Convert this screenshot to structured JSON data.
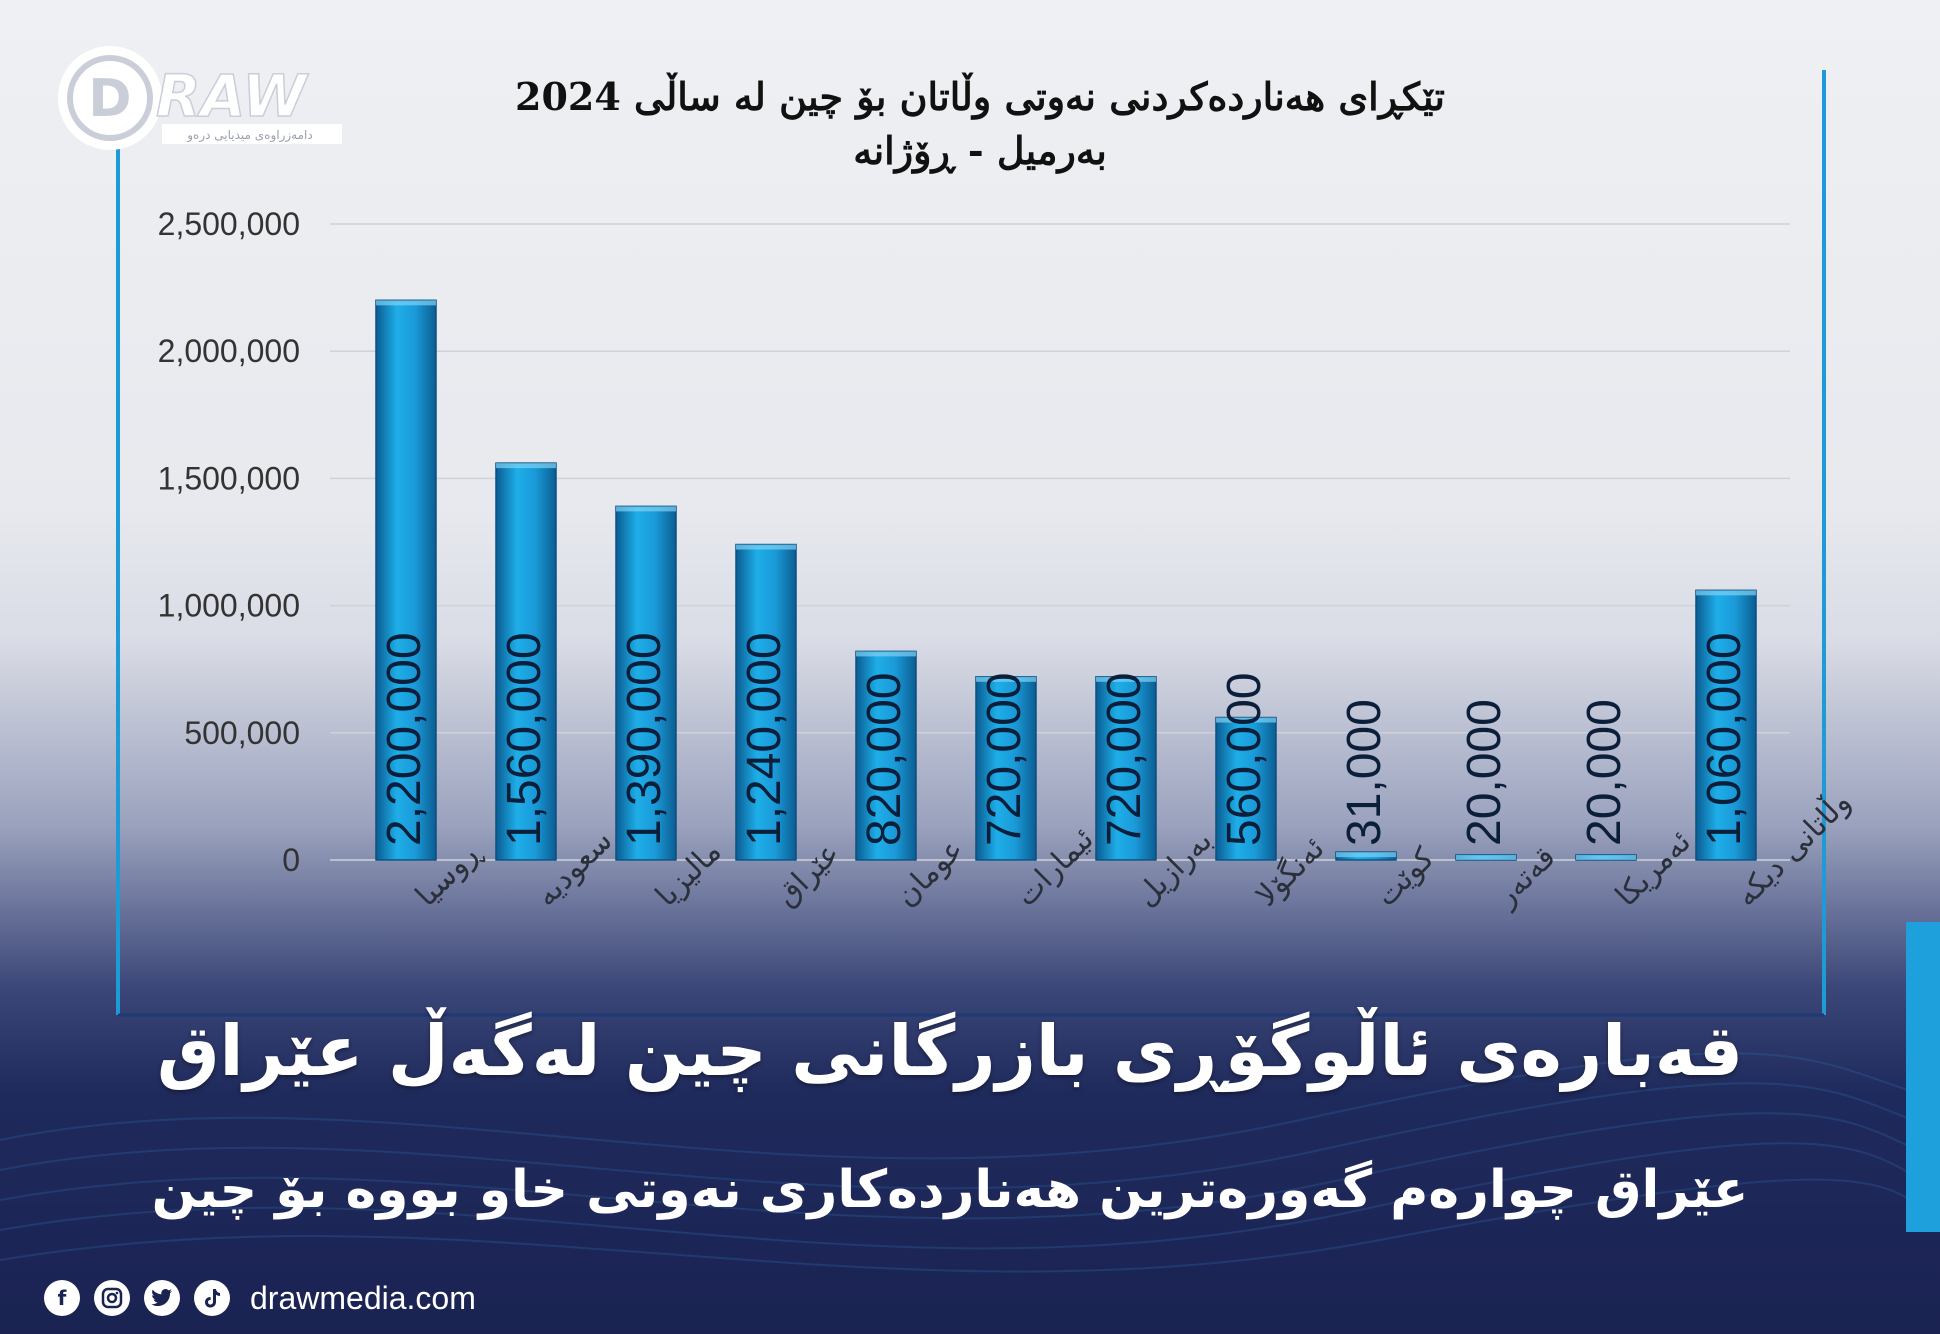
{
  "brand": {
    "logo_text": "RAW",
    "logo_letter": "D",
    "logo_tagline": "دامەزراوەی میدیایی درەو"
  },
  "headline": "قەبارەی ئاڵوگۆڕی بازرگانی چین لەگەڵ عێراق",
  "subheadline": "عێراق چوارەم گەورەترین هەناردەکاری نەوتی خاو بووە بۆ چین",
  "footer": {
    "website": "drawmedia.com",
    "social_icons": [
      "facebook-icon",
      "instagram-icon",
      "twitter-icon",
      "tiktok-icon"
    ]
  },
  "colors": {
    "bar": "#1a9ad8",
    "bar_dark": "#0b5d92",
    "frame": "#1e9ad6",
    "accent": "#1ea0dc",
    "background_dark": "#1a2352"
  },
  "chart_data": {
    "type": "bar",
    "title": "تێکڕای هەناردەکردنی نەوتی وڵاتان بۆ چین لە ساڵی 2024",
    "subtitle": "بەرمیل - ڕۆژانە",
    "xlabel": "",
    "ylabel": "",
    "ylim": [
      0,
      2500000
    ],
    "yticks": [
      "0",
      "500,000",
      "1,000,000",
      "1,500,000",
      "2,000,000",
      "2,500,000"
    ],
    "ytick_values": [
      0,
      500000,
      1000000,
      1500000,
      2000000,
      2500000
    ],
    "grid": true,
    "legend": "none",
    "categories": [
      "ڕوسیا",
      "سعودیە",
      "مالیزیا",
      "عێراق",
      "عومان",
      "ئیمارات",
      "بەرازیل",
      "ئەنگۆلا",
      "کوێت",
      "قەتەر",
      "ئەمریکا",
      "وڵاتانی دیکە"
    ],
    "values": [
      2200000,
      1560000,
      1390000,
      1240000,
      820000,
      720000,
      720000,
      560000,
      31000,
      20000,
      20000,
      1060000
    ],
    "data_labels": [
      "2,200,000",
      "1,560,000",
      "1,390,000",
      "1,240,000",
      "820,000",
      "720,000",
      "720,000",
      "560,000",
      "31,000",
      "20,000",
      "20,000",
      "1,060,000"
    ]
  }
}
